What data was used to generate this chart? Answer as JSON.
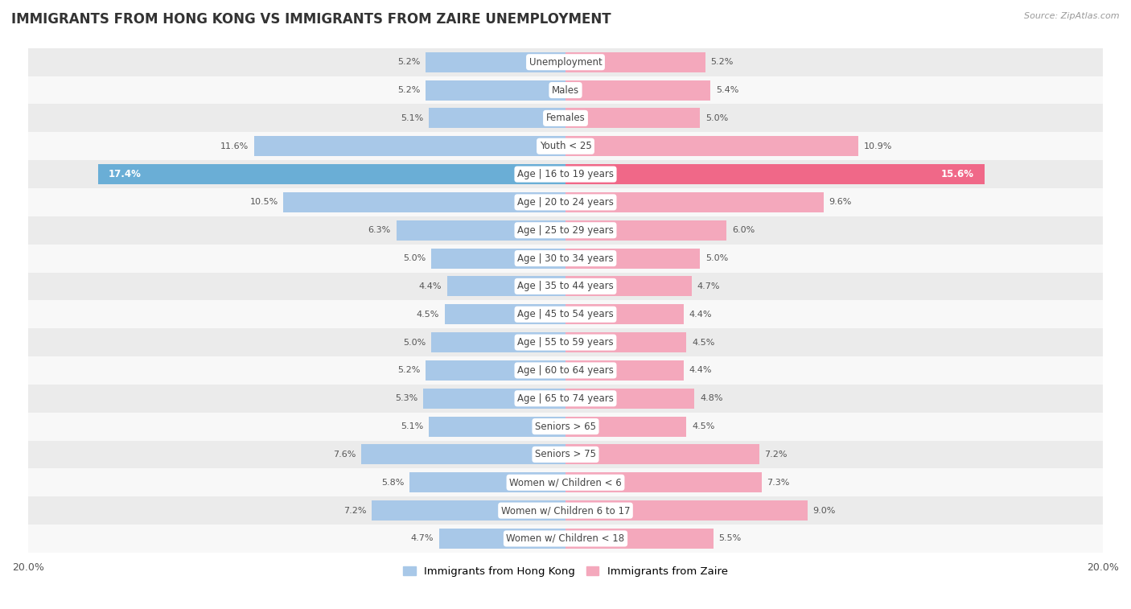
{
  "title": "IMMIGRANTS FROM HONG KONG VS IMMIGRANTS FROM ZAIRE UNEMPLOYMENT",
  "source": "Source: ZipAtlas.com",
  "categories": [
    "Unemployment",
    "Males",
    "Females",
    "Youth < 25",
    "Age | 16 to 19 years",
    "Age | 20 to 24 years",
    "Age | 25 to 29 years",
    "Age | 30 to 34 years",
    "Age | 35 to 44 years",
    "Age | 45 to 54 years",
    "Age | 55 to 59 years",
    "Age | 60 to 64 years",
    "Age | 65 to 74 years",
    "Seniors > 65",
    "Seniors > 75",
    "Women w/ Children < 6",
    "Women w/ Children 6 to 17",
    "Women w/ Children < 18"
  ],
  "hong_kong": [
    5.2,
    5.2,
    5.1,
    11.6,
    17.4,
    10.5,
    6.3,
    5.0,
    4.4,
    4.5,
    5.0,
    5.2,
    5.3,
    5.1,
    7.6,
    5.8,
    7.2,
    4.7
  ],
  "zaire": [
    5.2,
    5.4,
    5.0,
    10.9,
    15.6,
    9.6,
    6.0,
    5.0,
    4.7,
    4.4,
    4.5,
    4.4,
    4.8,
    4.5,
    7.2,
    7.3,
    9.0,
    5.5
  ],
  "hong_kong_color": "#a8c8e8",
  "zaire_color": "#f4a8bc",
  "hong_kong_highlight_color": "#6aaed6",
  "zaire_highlight_color": "#f06888",
  "background_odd": "#ebebeb",
  "background_even": "#f8f8f8",
  "highlight_row": 4,
  "bar_height": 0.72,
  "xlim": 20.0,
  "legend_label_hk": "Immigrants from Hong Kong",
  "legend_label_z": "Immigrants from Zaire",
  "label_color": "#555555",
  "highlight_label_color_hk": "#ffffff",
  "highlight_label_color_z": "#ffffff"
}
